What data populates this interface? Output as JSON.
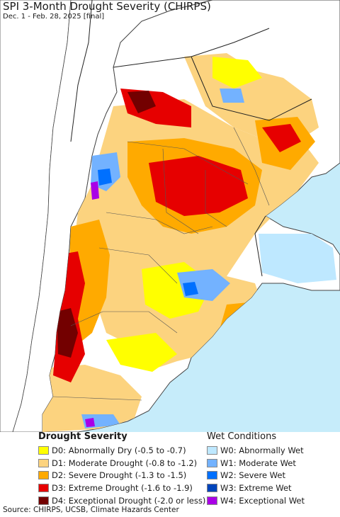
{
  "header": {
    "title": "SPI 3-Month Drought Severity (CHIRPS)",
    "subtitle": "Dec. 1 - Feb. 28, 2025 [final]"
  },
  "legend": {
    "drought": {
      "heading": "Drought Severity",
      "items": [
        {
          "label": "D0: Abnormally Dry (-0.5 to -0.7)",
          "color": "#ffff00"
        },
        {
          "label": "D1: Moderate Drought (-0.8 to -1.2)",
          "color": "#fcd37f"
        },
        {
          "label": "D2: Severe Drought (-1.3 to -1.5)",
          "color": "#ffaa00"
        },
        {
          "label": "D3: Extreme Drought (-1.6 to -1.9)",
          "color": "#e60000"
        },
        {
          "label": "D4: Exceptional Drought (-2.0 or less)",
          "color": "#730000"
        }
      ]
    },
    "wet": {
      "heading": "Wet Conditions",
      "items": [
        {
          "label": "W0: Abnormally Wet",
          "color": "#bee8ff"
        },
        {
          "label": "W1: Moderate Wet",
          "color": "#73b2ff"
        },
        {
          "label": "W2: Severe Wet",
          "color": "#0070ff"
        },
        {
          "label": "W3: Extreme Wet",
          "color": "#0044bb"
        },
        {
          "label": "W4: Exceptional Wet",
          "color": "#a900e6"
        }
      ]
    }
  },
  "map": {
    "land_color": "#ffffff",
    "ocean_color": "#c6ecfa",
    "neighbor_color": "#ffffff",
    "border_color": "#444444"
  },
  "footer": {
    "source": "Source: CHIRPS, UCSB, Climate Hazards Center"
  }
}
